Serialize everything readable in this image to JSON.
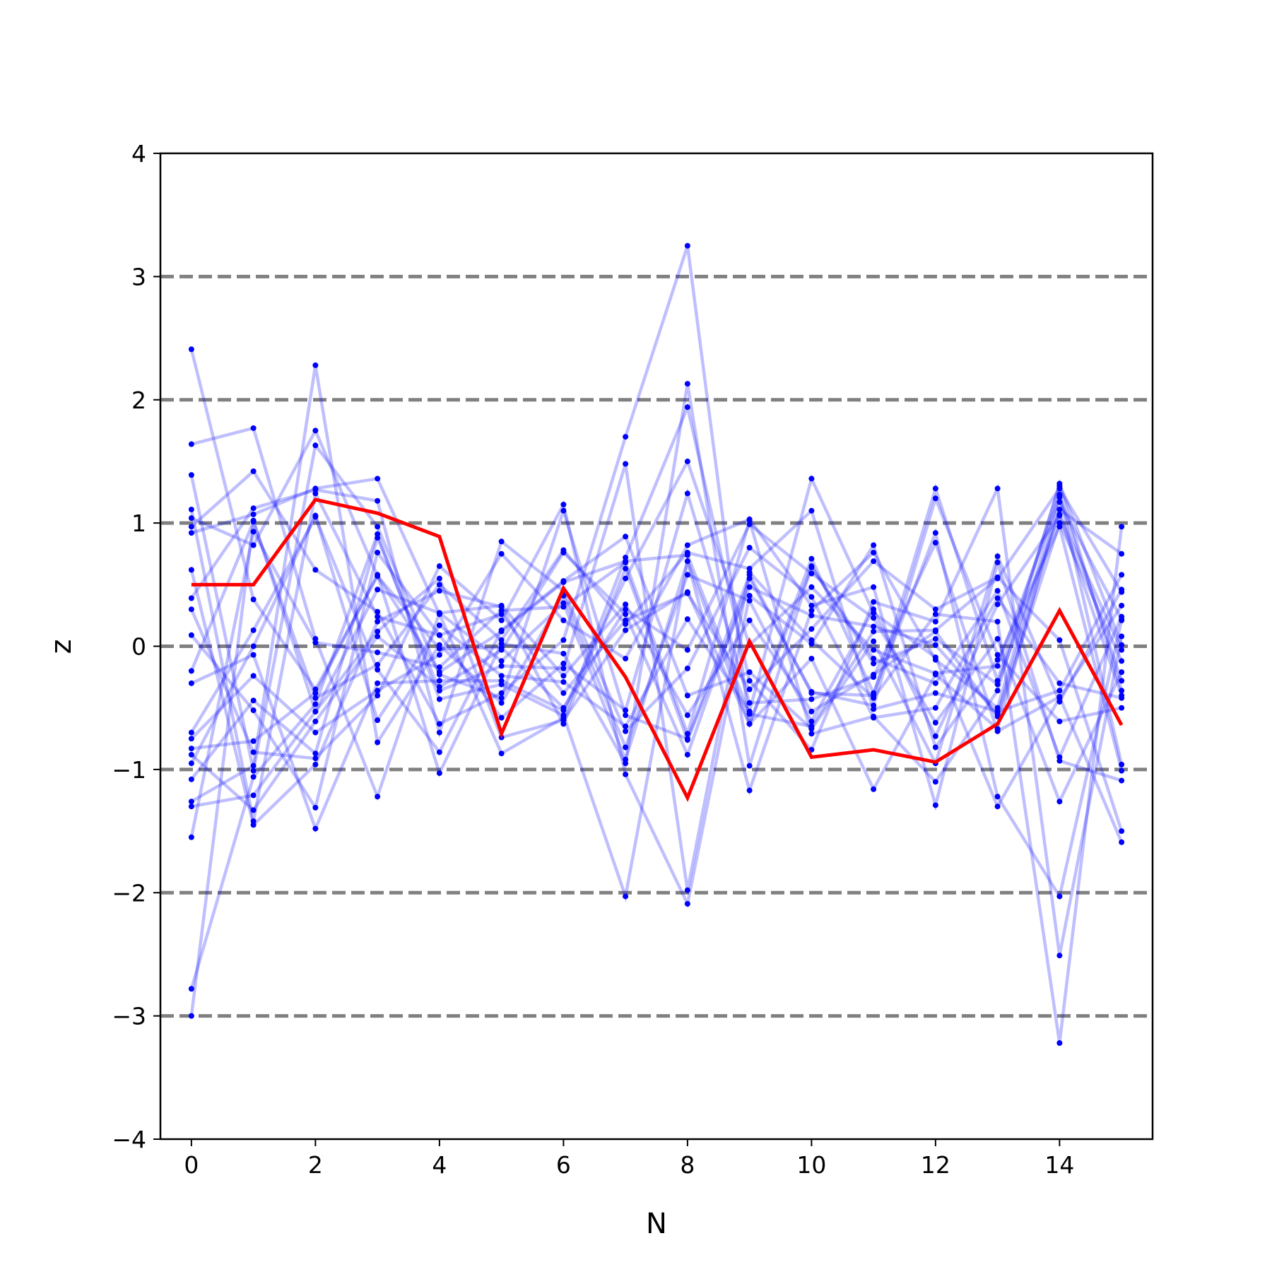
{
  "chart_data": {
    "type": "line",
    "xlabel": "N",
    "ylabel": "z",
    "xlim": [
      -0.5,
      15.5
    ],
    "ylim": [
      -4,
      4
    ],
    "x_ticks": [
      0,
      2,
      4,
      6,
      8,
      10,
      12,
      14
    ],
    "x_tick_labels": [
      "0",
      "2",
      "4",
      "6",
      "8",
      "10",
      "12",
      "14"
    ],
    "y_ticks": [
      -4,
      -3,
      -2,
      -1,
      0,
      1,
      2,
      3,
      4
    ],
    "y_tick_labels": [
      "−4",
      "−3",
      "−2",
      "−1",
      "0",
      "1",
      "2",
      "3",
      "4"
    ],
    "reference_lines": [
      -3,
      -2,
      -1,
      0,
      1,
      2,
      3
    ],
    "grid": false,
    "colors": {
      "highlight": "#ff0000",
      "series": "#0000ff",
      "reference": "#808080"
    },
    "highlight_series": {
      "x": [
        0,
        1,
        2,
        3,
        4,
        5,
        6,
        7,
        8,
        9,
        10,
        11,
        12,
        13,
        14,
        15
      ],
      "values": [
        0.5,
        0.5,
        1.19,
        1.08,
        0.89,
        -0.71,
        0.47,
        -0.25,
        -1.23,
        0.04,
        -0.9,
        -0.84,
        -0.94,
        -0.63,
        0.29,
        -0.64
      ]
    },
    "series": [
      {
        "values": [
          2.41,
          0.38,
          -0.35,
          0.57,
          -0.21,
          0.12,
          0.52,
          0.69,
          0.74,
          -0.55,
          -0.65,
          0.12,
          0.13,
          0.55,
          1.28,
          0.44
        ]
      },
      {
        "values": [
          1.64,
          1.77,
          0.06,
          -1.22,
          0.27,
          -0.12,
          0.35,
          -0.92,
          0.69,
          -0.63,
          0.71,
          -0.38,
          0.92,
          -1.22,
          -2.03,
          0.21
        ]
      },
      {
        "values": [
          1.39,
          -1.01,
          1.63,
          0.97,
          -0.23,
          -0.42,
          1.1,
          -0.56,
          -0.75,
          0.58,
          -0.38,
          -0.4,
          1.28,
          -0.28,
          1.3,
          -0.36
        ]
      },
      {
        "values": [
          1.11,
          -1.42,
          1.24,
          0.24,
          0.09,
          0.26,
          -0.38,
          0.21,
          0.43,
          -0.35,
          0.14,
          0.69,
          0.3,
          0.56,
          0.05,
          -1.5
        ]
      },
      {
        "values": [
          1.04,
          0.82,
          1.75,
          0.57,
          -0.02,
          -0.01,
          -0.5,
          0.3,
          -0.03,
          0.99,
          0.59,
          0.23,
          -0.62,
          0.06,
          -1.26,
          -0.21
        ]
      },
      {
        "values": [
          0.97,
          1.42,
          0.62,
          0.28,
          -0.63,
          -0.38,
          0.05,
          1.7,
          3.25,
          -0.63,
          -0.1,
          -1.16,
          -0.23,
          -0.67,
          1.17,
          0.22
        ]
      },
      {
        "values": [
          0.92,
          1.07,
          1.28,
          1.36,
          0.26,
          -0.87,
          -0.58,
          0.72,
          1.94,
          -0.28,
          -0.84,
          0.36,
          0.2,
          1.28,
          -2.51,
          0.08
        ]
      },
      {
        "values": [
          0.62,
          -1.45,
          -0.96,
          0.2,
          0.45,
          0.32,
          -0.63,
          0.63,
          -0.76,
          0.48,
          0.25,
          0.16,
          0.01,
          -0.55,
          1.11,
          0.75
        ]
      },
      {
        "values": [
          0.39,
          1.12,
          1.27,
          1.18,
          -0.7,
          0.85,
          0.45,
          -0.69,
          -0.18,
          0.8,
          0.4,
          -0.58,
          -0.5,
          0.39,
          -0.3,
          -0.42
        ]
      },
      {
        "values": [
          0.3,
          -0.86,
          -0.91,
          -0.4,
          0.65,
          0.21,
          1.15,
          -1.04,
          -2.09,
          0.41,
          0.02,
          0.82,
          -0.82,
          -0.11,
          0.97,
          -1.01
        ]
      },
      {
        "values": [
          0.09,
          -0.52,
          -1.31,
          0.76,
          0.09,
          -0.58,
          -0.14,
          -0.52,
          1.24,
          -0.46,
          -0.43,
          -0.25,
          0.84,
          -0.69,
          -0.41,
          -1.59
        ]
      },
      {
        "values": [
          -0.2,
          1.01,
          -0.42,
          -0.15,
          0.5,
          0.05,
          0.78,
          0.18,
          0.76,
          0.63,
          1.1,
          -0.51,
          -0.38,
          -0.53,
          -0.36,
          0.58
        ]
      },
      {
        "values": [
          -0.3,
          -0.07,
          -1.48,
          -0.3,
          -0.28,
          -0.28,
          -0.52,
          0.55,
          1.5,
          0.01,
          0.48,
          -0.03,
          -0.22,
          -0.16,
          1.21,
          -0.28
        ]
      },
      {
        "values": [
          -0.7,
          0.13,
          1.05,
          -0.19,
          -0.86,
          0.13,
          0.53,
          0.89,
          -0.4,
          -0.21,
          -0.67,
          0.04,
          -0.95,
          0.73,
          -0.45,
          0.46
        ]
      },
      {
        "values": [
          -0.75,
          -0.24,
          -0.7,
          -0.36,
          -0.07,
          0.75,
          0.21,
          -0.1,
          0.82,
          1.03,
          0.33,
          0.48,
          -1.29,
          0.68,
          -0.93,
          -1.09
        ]
      },
      {
        "values": [
          -0.83,
          -0.77,
          -0.38,
          0.58,
          -1.03,
          0.02,
          -0.06,
          -0.95,
          2.13,
          -0.97,
          0.65,
          -0.14,
          0.06,
          -0.31,
          1.07,
          -0.4
        ]
      },
      {
        "values": [
          -0.88,
          -1.33,
          -0.61,
          0.08,
          -0.33,
          -0.03,
          0.76,
          0.26,
          -0.88,
          0.55,
          -0.37,
          -0.48,
          1.2,
          -0.07,
          -0.61,
          -0.5
        ]
      },
      {
        "values": [
          -0.95,
          0.0,
          1.06,
          -0.6,
          0.17,
          -0.24,
          -0.29,
          -0.65,
          0.22,
          -0.53,
          1.36,
          0.27,
          -0.09,
          -1.3,
          -0.42,
          0.33
        ]
      },
      {
        "values": [
          -1.08,
          -0.44,
          -0.87,
          0.88,
          -0.36,
          -0.16,
          -0.18,
          1.48,
          -1.98,
          0.6,
          0.05,
          -0.42,
          0.26,
          0.2,
          -3.22,
          0.97
        ]
      },
      {
        "values": [
          -1.26,
          -0.97,
          2.28,
          -0.78,
          0.01,
          -0.46,
          0.41,
          -0.82,
          0.58,
          0.37,
          -0.61,
          0.3,
          -0.73,
          0.34,
          1.06,
          -0.03
        ]
      },
      {
        "values": [
          -1.3,
          -1.21,
          -0.53,
          0.12,
          0.55,
          -0.74,
          -0.6,
          0.13,
          0.44,
          -0.63,
          0.64,
          -0.1,
          -0.3,
          0.45,
          -0.9,
          0.24
        ]
      },
      {
        "values": [
          -1.55,
          0.93,
          0.03,
          -0.05,
          -0.17,
          0.29,
          0.32,
          0.68,
          -0.71,
          1.02,
          -0.71,
          -0.57,
          -1.1,
          -0.36,
          1.32,
          0.01
        ]
      },
      {
        "values": [
          -2.78,
          -1.06,
          -0.47,
          0.91,
          -0.43,
          -0.31,
          -0.56,
          -2.03,
          0.69,
          -1.17,
          0.29,
          0.76,
          -0.11,
          -0.5,
          1.23,
          -0.96
        ]
      },
      {
        "values": [
          -3.0,
          1.02,
          -0.53,
          0.46,
          0.27,
          0.33,
          -0.24,
          0.34,
          -0.56,
          0.21,
          -0.53,
          -0.23,
          0.12,
          -0.57,
          1.0,
          -0.12
        ]
      }
    ]
  }
}
